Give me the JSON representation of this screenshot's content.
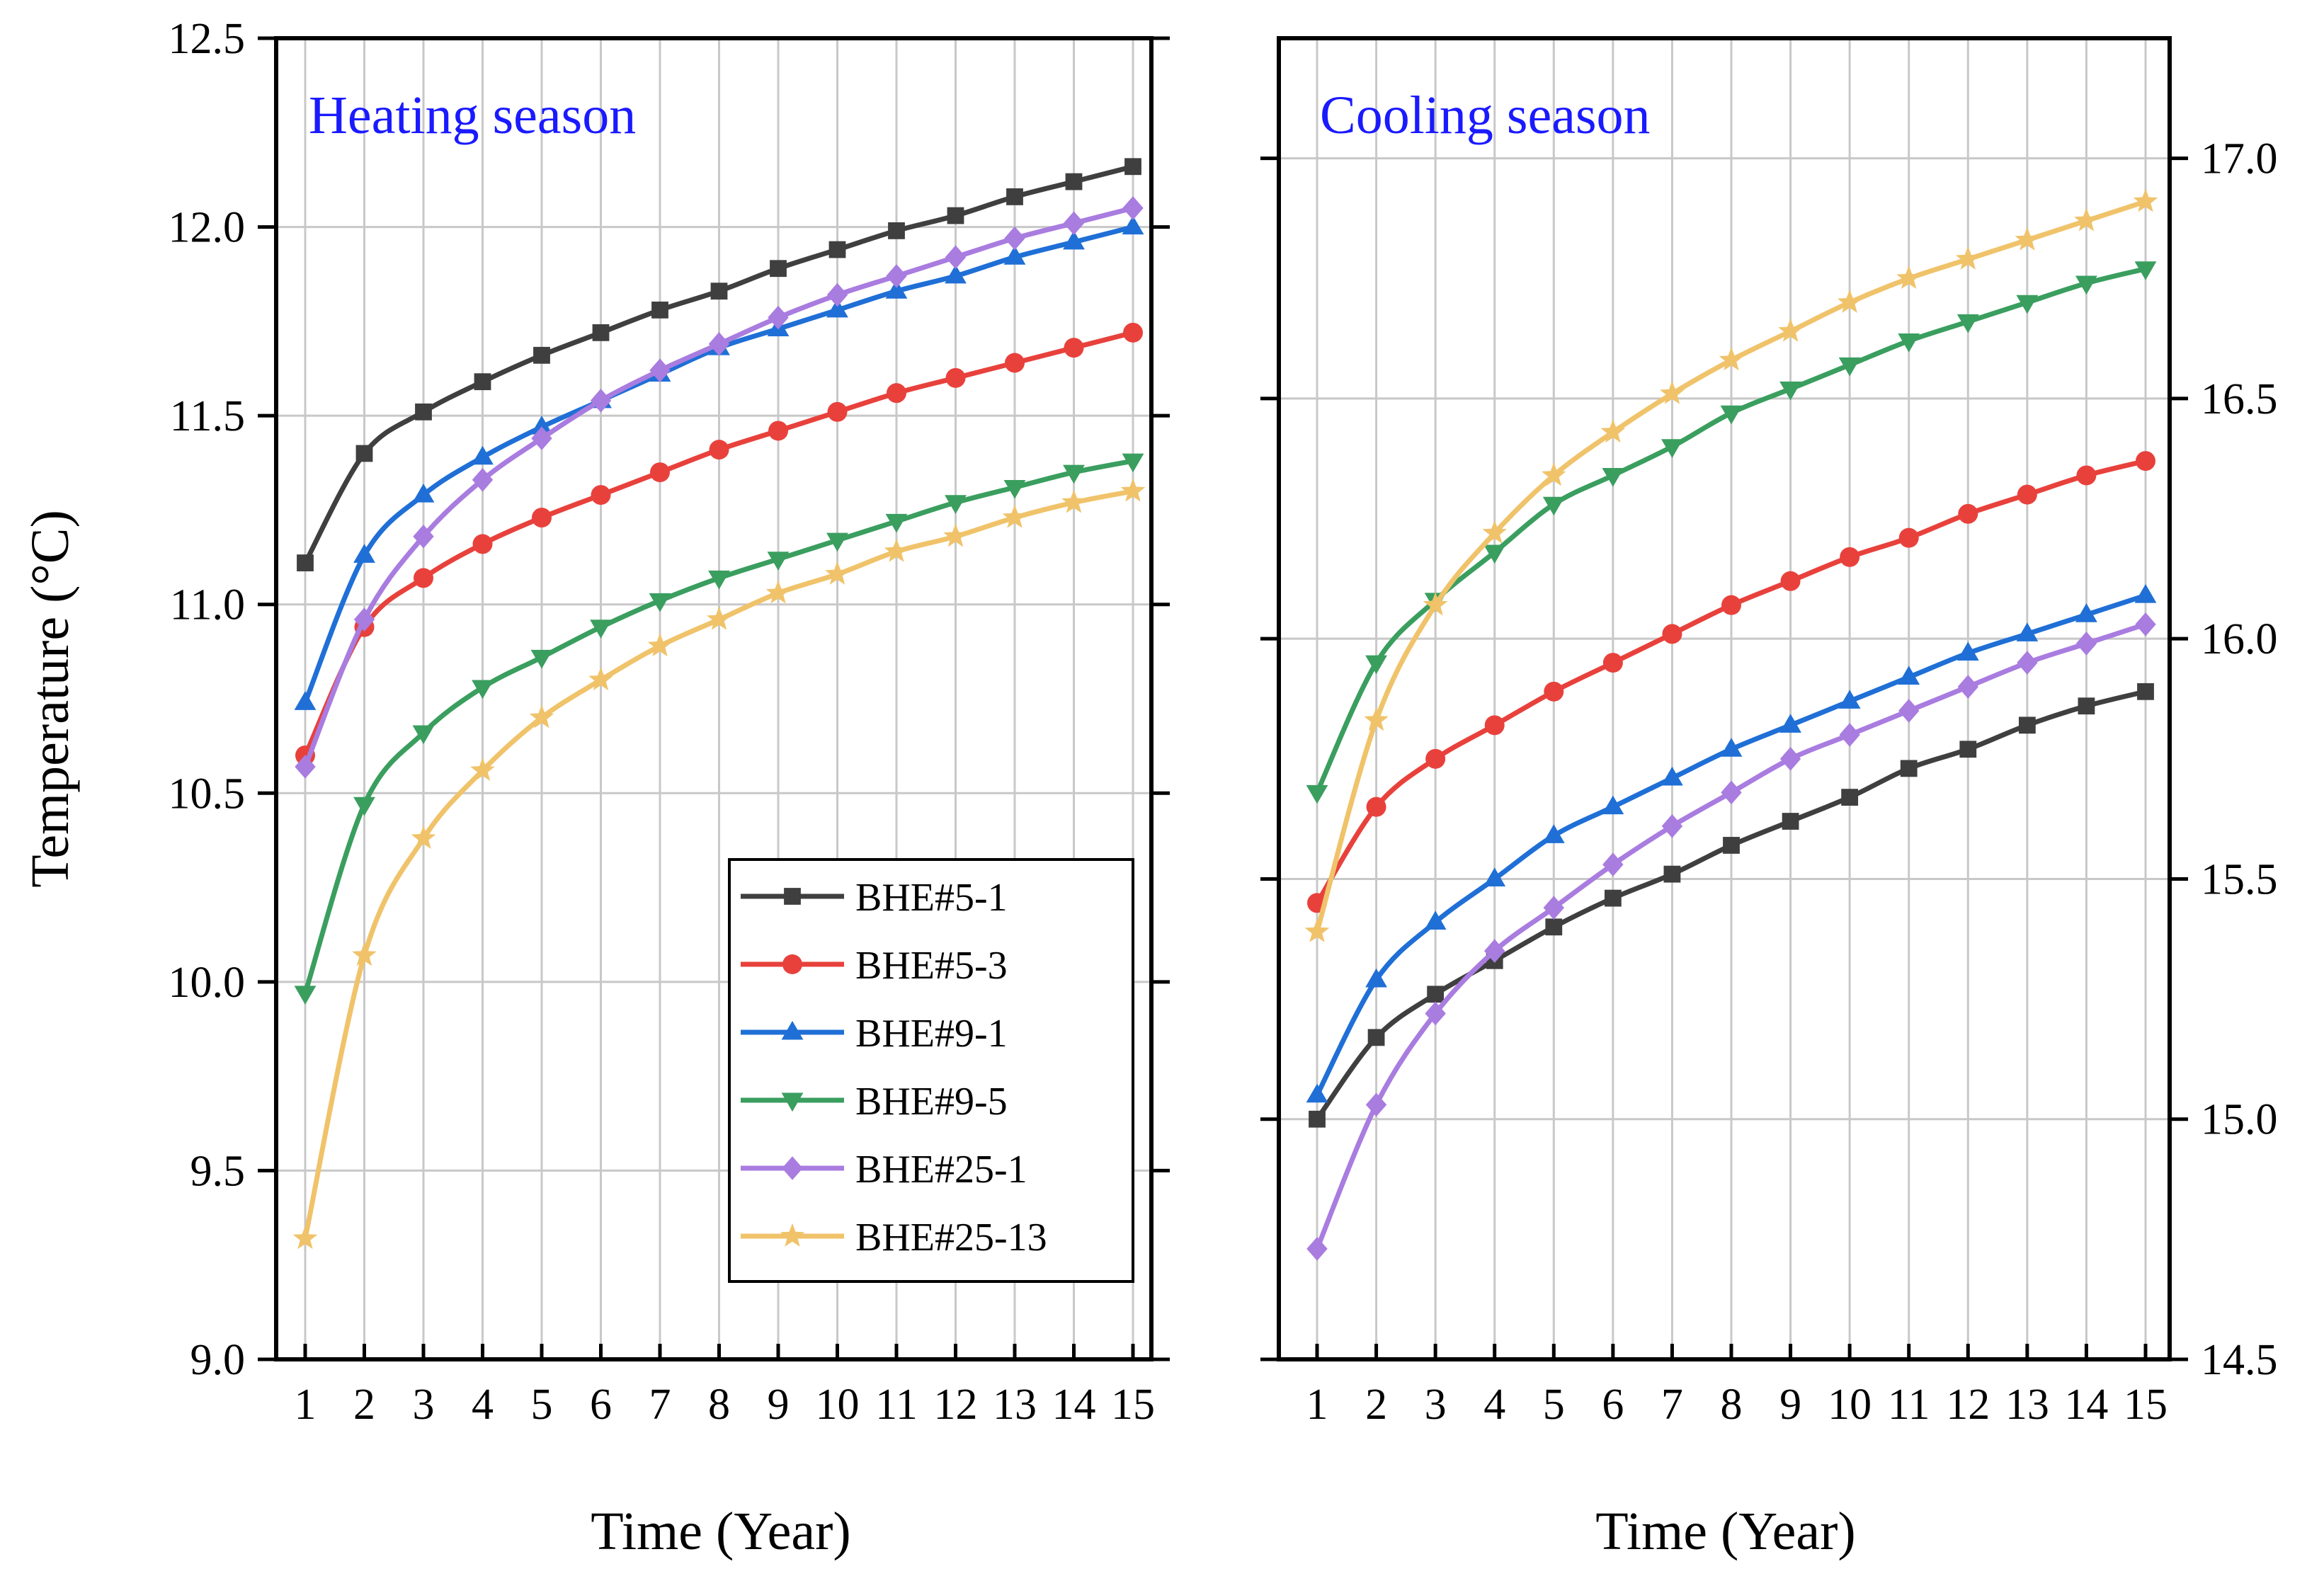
{
  "chart_data": [
    {
      "type": "line",
      "title": "Heating season",
      "xlabel": "Time (Year)",
      "ylabel": "Temperature (°C)",
      "x": [
        1,
        2,
        3,
        4,
        5,
        6,
        7,
        8,
        9,
        10,
        11,
        12,
        13,
        14,
        15
      ],
      "xtick_labels": [
        "1",
        "2",
        "3",
        "4",
        "5",
        "6",
        "7",
        "8",
        "9",
        "10",
        "11",
        "12",
        "13",
        "14",
        "15"
      ],
      "ylim": [
        9.0,
        12.5
      ],
      "ytick_labels": [
        "9.0",
        "9.5",
        "10.0",
        "10.5",
        "11.0",
        "11.5",
        "12.0",
        "12.5"
      ],
      "y_axis_side": "left",
      "grid": true,
      "legend": "bottom-right",
      "series": [
        {
          "name": "BHE#5-1",
          "color": "#3f3f3f",
          "marker": "square",
          "values": [
            11.11,
            11.4,
            11.51,
            11.59,
            11.66,
            11.72,
            11.78,
            11.83,
            11.89,
            11.94,
            11.99,
            12.03,
            12.08,
            12.12,
            12.16
          ]
        },
        {
          "name": "BHE#5-3",
          "color": "#e8413c",
          "marker": "circle",
          "values": [
            10.6,
            10.94,
            11.07,
            11.16,
            11.23,
            11.29,
            11.35,
            11.41,
            11.46,
            11.51,
            11.56,
            11.6,
            11.64,
            11.68,
            11.72
          ]
        },
        {
          "name": "BHE#9-1",
          "color": "#1f6fd6",
          "marker": "triangle-up",
          "values": [
            10.74,
            11.13,
            11.29,
            11.39,
            11.47,
            11.54,
            11.61,
            11.68,
            11.73,
            11.78,
            11.83,
            11.87,
            11.92,
            11.96,
            12.0
          ]
        },
        {
          "name": "BHE#9-5",
          "color": "#3a9e5f",
          "marker": "triangle-down",
          "values": [
            9.97,
            10.47,
            10.66,
            10.78,
            10.86,
            10.94,
            11.01,
            11.07,
            11.12,
            11.17,
            11.22,
            11.27,
            11.31,
            11.35,
            11.38
          ]
        },
        {
          "name": "BHE#25-1",
          "color": "#a97ce0",
          "marker": "diamond",
          "values": [
            10.57,
            10.96,
            11.18,
            11.33,
            11.44,
            11.54,
            11.62,
            11.69,
            11.76,
            11.82,
            11.87,
            11.92,
            11.97,
            12.01,
            12.05
          ]
        },
        {
          "name": "BHE#25-13",
          "color": "#f0c36a",
          "marker": "star",
          "values": [
            9.32,
            10.07,
            10.38,
            10.56,
            10.7,
            10.8,
            10.89,
            10.96,
            11.03,
            11.08,
            11.14,
            11.18,
            11.23,
            11.27,
            11.3
          ]
        }
      ]
    },
    {
      "type": "line",
      "title": "Cooling season",
      "xlabel": "Time (Year)",
      "ylabel": "",
      "x": [
        1,
        2,
        3,
        4,
        5,
        6,
        7,
        8,
        9,
        10,
        11,
        12,
        13,
        14,
        15
      ],
      "xtick_labels": [
        "1",
        "2",
        "3",
        "4",
        "5",
        "6",
        "7",
        "8",
        "9",
        "10",
        "11",
        "12",
        "13",
        "14",
        "15"
      ],
      "ylim": [
        14.5,
        17.25
      ],
      "ytick_labels": [
        "14.5",
        "15.0",
        "15.5",
        "16.0",
        "16.5",
        "17.0"
      ],
      "y_axis_side": "right",
      "grid": true,
      "series": [
        {
          "name": "BHE#5-1",
          "color": "#3f3f3f",
          "marker": "square",
          "values": [
            15.0,
            15.17,
            15.26,
            15.33,
            15.4,
            15.46,
            15.51,
            15.57,
            15.62,
            15.67,
            15.73,
            15.77,
            15.82,
            15.86,
            15.89
          ]
        },
        {
          "name": "BHE#5-3",
          "color": "#e8413c",
          "marker": "circle",
          "values": [
            15.45,
            15.65,
            15.75,
            15.82,
            15.89,
            15.95,
            16.01,
            16.07,
            16.12,
            16.17,
            16.21,
            16.26,
            16.3,
            16.34,
            16.37
          ]
        },
        {
          "name": "BHE#9-1",
          "color": "#1f6fd6",
          "marker": "triangle-up",
          "values": [
            15.05,
            15.29,
            15.41,
            15.5,
            15.59,
            15.65,
            15.71,
            15.77,
            15.82,
            15.87,
            15.92,
            15.97,
            16.01,
            16.05,
            16.09
          ]
        },
        {
          "name": "BHE#9-5",
          "color": "#3a9e5f",
          "marker": "triangle-down",
          "values": [
            15.68,
            15.95,
            16.08,
            16.18,
            16.28,
            16.34,
            16.4,
            16.47,
            16.52,
            16.57,
            16.62,
            16.66,
            16.7,
            16.74,
            16.77
          ]
        },
        {
          "name": "BHE#25-1",
          "color": "#a97ce0",
          "marker": "diamond",
          "values": [
            14.73,
            15.03,
            15.22,
            15.35,
            15.44,
            15.53,
            15.61,
            15.68,
            15.75,
            15.8,
            15.85,
            15.9,
            15.95,
            15.99,
            16.03
          ]
        },
        {
          "name": "BHE#25-13",
          "color": "#f0c36a",
          "marker": "star",
          "values": [
            15.39,
            15.83,
            16.07,
            16.22,
            16.34,
            16.43,
            16.51,
            16.58,
            16.64,
            16.7,
            16.75,
            16.79,
            16.83,
            16.87,
            16.91
          ]
        }
      ]
    }
  ],
  "colors": {
    "panel_title": "#1a1aff",
    "grid": "#c8c8c8",
    "axis": "#000000"
  }
}
